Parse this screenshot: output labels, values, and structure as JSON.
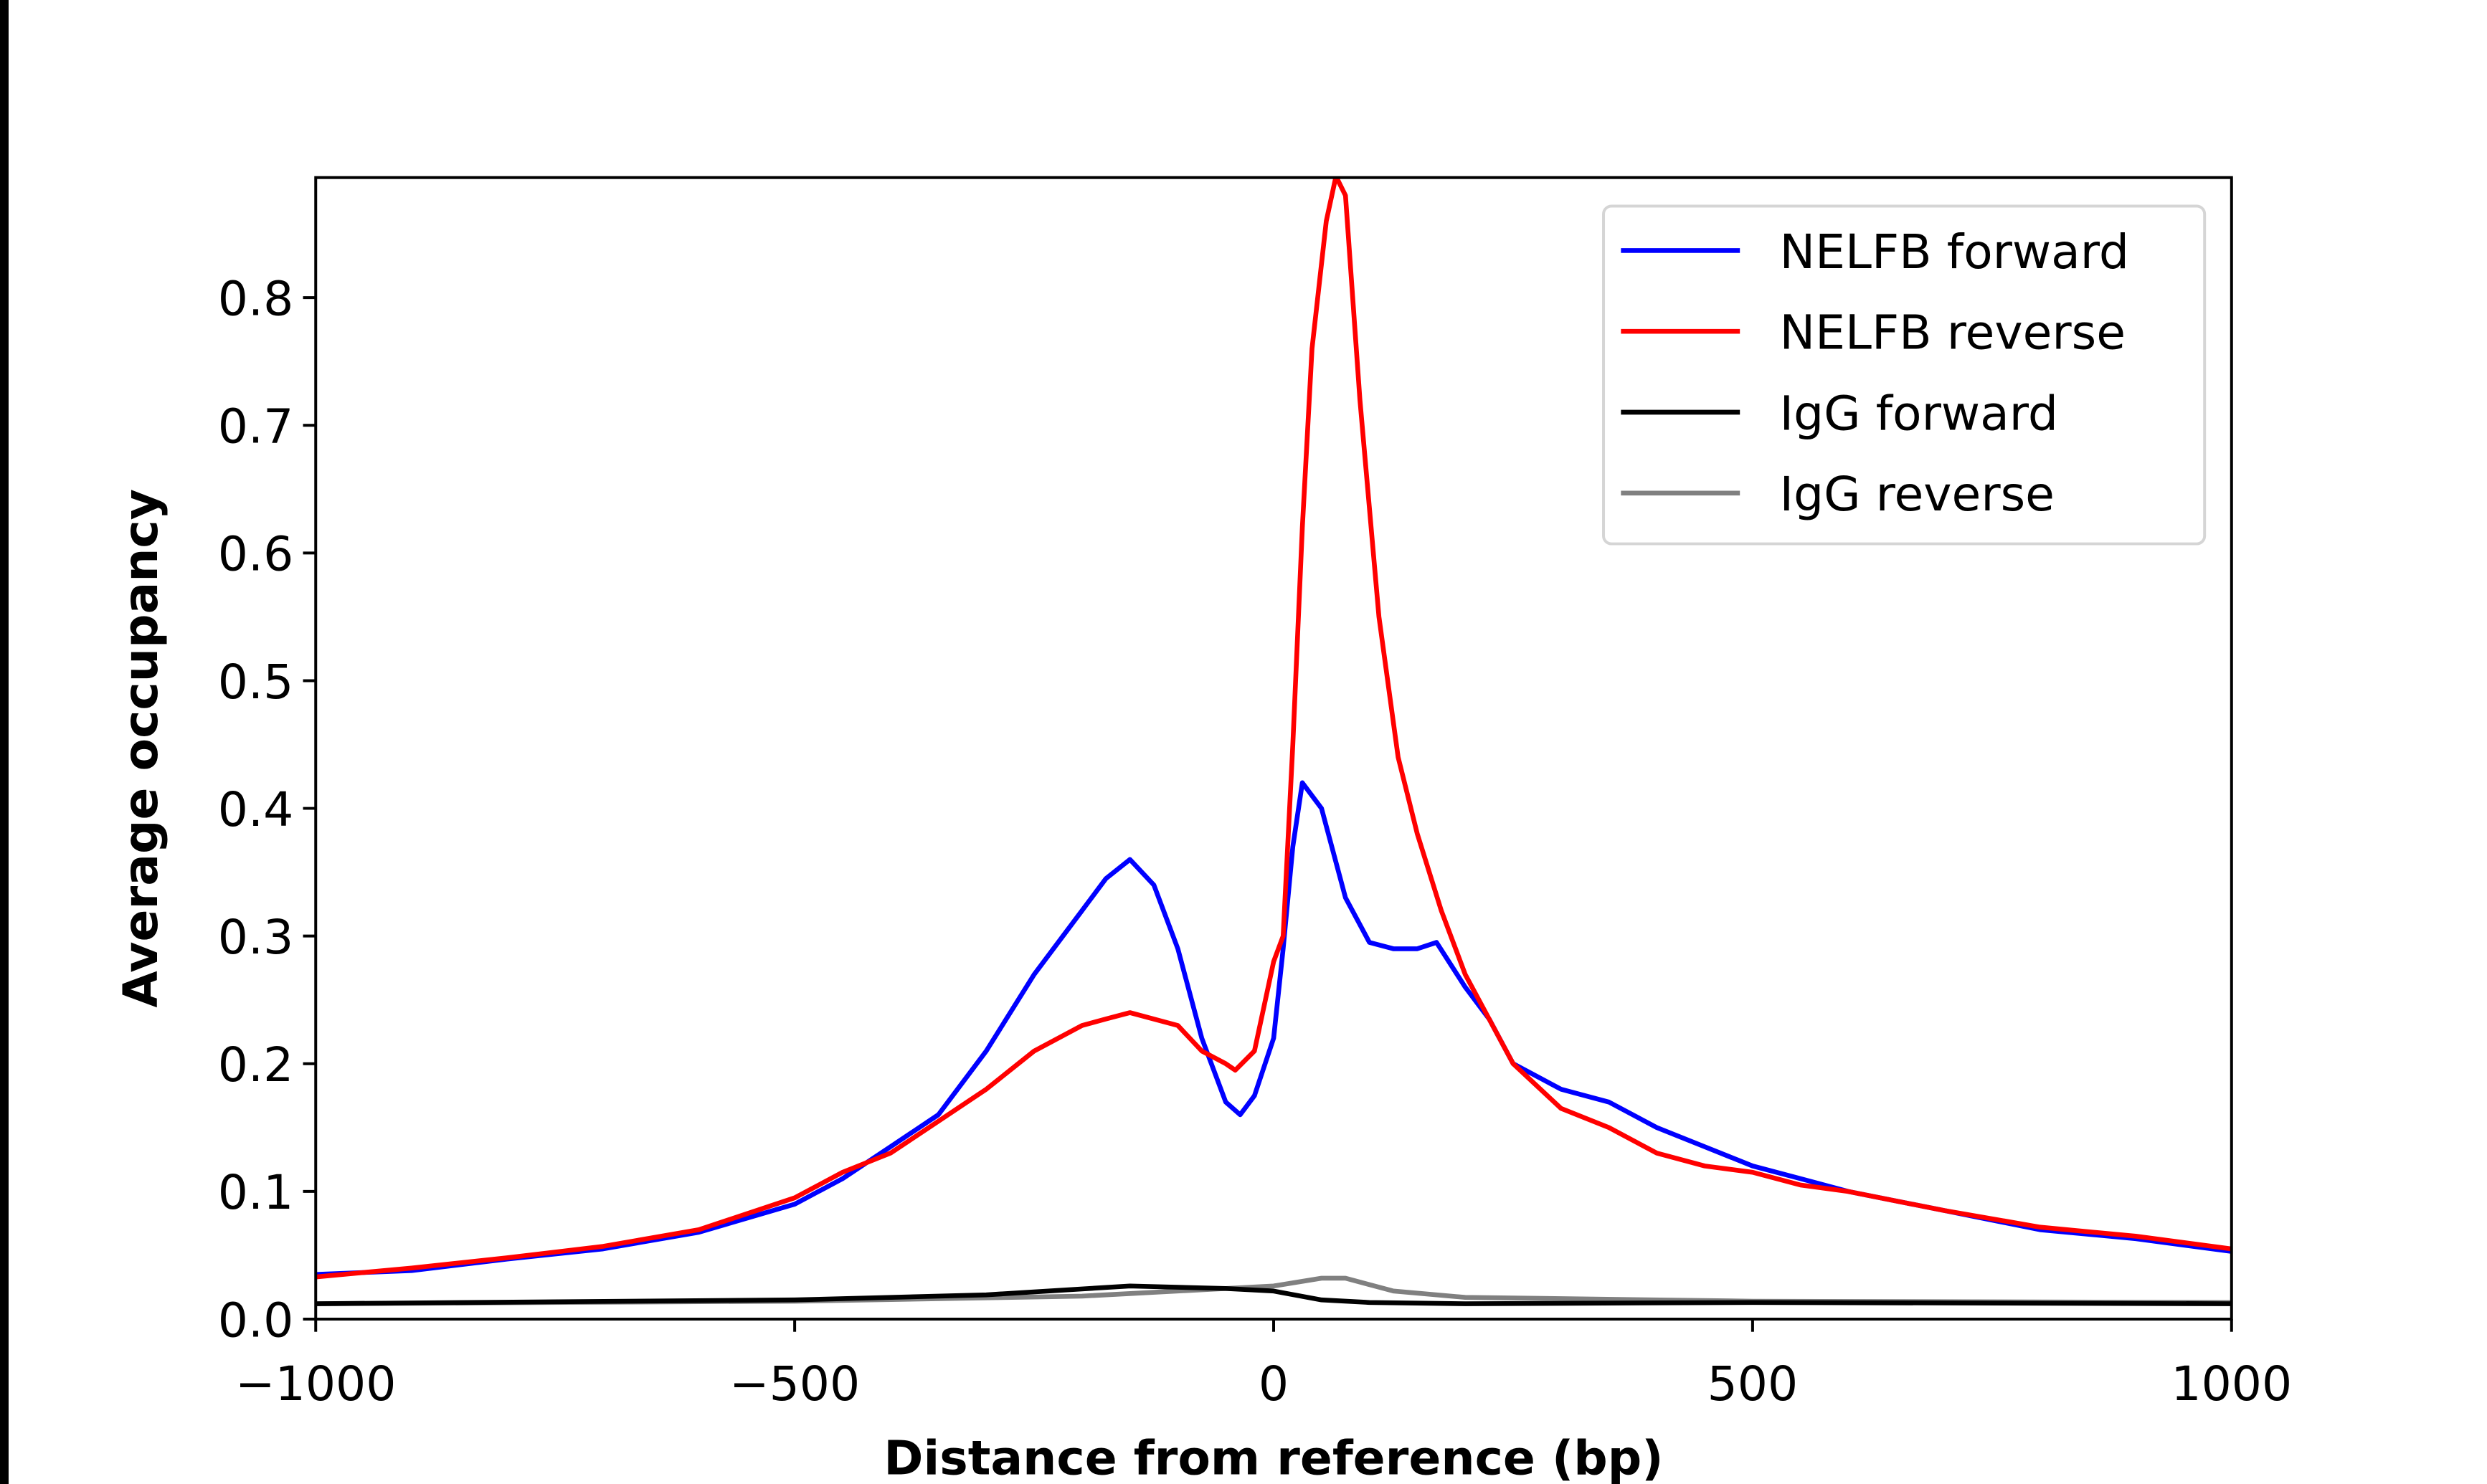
{
  "chart_data": {
    "type": "line",
    "title": "",
    "xlabel": "Distance from reference (bp)",
    "ylabel": "Average occupancy",
    "xlim": [
      -1000,
      1000
    ],
    "ylim": [
      0,
      0.894
    ],
    "xticks": [
      -1000,
      -500,
      0,
      500,
      1000
    ],
    "xtick_labels": [
      "−1000",
      "−500",
      "0",
      "500",
      "1000"
    ],
    "yticks": [
      0,
      0.1,
      0.2,
      0.3,
      0.4,
      0.5,
      0.6,
      0.7,
      0.8
    ],
    "ytick_labels": [
      "0.0",
      "0.1",
      "0.2",
      "0.3",
      "0.4",
      "0.5",
      "0.6",
      "0.7",
      "0.8"
    ],
    "grid": false,
    "legend_placement": "top-right",
    "series": [
      {
        "name": "NELFB forward",
        "color": "#0000ff",
        "x": [
          -1000,
          -900,
          -800,
          -700,
          -600,
          -500,
          -450,
          -400,
          -350,
          -300,
          -250,
          -200,
          -175,
          -150,
          -125,
          -100,
          -75,
          -50,
          -35,
          -20,
          0,
          10,
          20,
          30,
          50,
          75,
          100,
          125,
          150,
          170,
          200,
          225,
          250,
          300,
          350,
          400,
          450,
          500,
          550,
          600,
          700,
          800,
          900,
          1000
        ],
        "y": [
          0.035,
          0.038,
          0.047,
          0.055,
          0.068,
          0.09,
          0.11,
          0.135,
          0.16,
          0.21,
          0.27,
          0.32,
          0.345,
          0.36,
          0.34,
          0.29,
          0.22,
          0.17,
          0.16,
          0.175,
          0.22,
          0.29,
          0.37,
          0.42,
          0.4,
          0.33,
          0.295,
          0.29,
          0.29,
          0.295,
          0.26,
          0.235,
          0.2,
          0.18,
          0.17,
          0.15,
          0.135,
          0.12,
          0.11,
          0.1,
          0.085,
          0.07,
          0.063,
          0.053
        ]
      },
      {
        "name": "NELFB reverse",
        "color": "#ff0000",
        "x": [
          -1000,
          -900,
          -800,
          -700,
          -600,
          -500,
          -450,
          -400,
          -350,
          -300,
          -250,
          -200,
          -175,
          -150,
          -100,
          -75,
          -50,
          -40,
          -20,
          0,
          10,
          20,
          30,
          40,
          55,
          65,
          75,
          90,
          110,
          130,
          150,
          175,
          200,
          250,
          300,
          350,
          400,
          450,
          500,
          550,
          600,
          700,
          800,
          900,
          1000
        ],
        "y": [
          0.033,
          0.04,
          0.048,
          0.057,
          0.07,
          0.095,
          0.115,
          0.13,
          0.155,
          0.18,
          0.21,
          0.23,
          0.235,
          0.24,
          0.23,
          0.21,
          0.2,
          0.195,
          0.21,
          0.28,
          0.3,
          0.45,
          0.62,
          0.76,
          0.86,
          0.895,
          0.88,
          0.72,
          0.55,
          0.44,
          0.38,
          0.32,
          0.27,
          0.2,
          0.165,
          0.15,
          0.13,
          0.12,
          0.115,
          0.105,
          0.1,
          0.085,
          0.072,
          0.065,
          0.055
        ]
      },
      {
        "name": "IgG forward",
        "color": "#000000",
        "x": [
          -1000,
          -500,
          -300,
          -150,
          -50,
          0,
          50,
          100,
          200,
          500,
          1000
        ],
        "y": [
          0.012,
          0.015,
          0.019,
          0.026,
          0.024,
          0.022,
          0.015,
          0.013,
          0.012,
          0.013,
          0.012
        ]
      },
      {
        "name": "IgG reverse",
        "color": "#808080",
        "x": [
          -1000,
          -500,
          -200,
          -50,
          0,
          50,
          75,
          125,
          200,
          500,
          1000
        ],
        "y": [
          0.012,
          0.014,
          0.018,
          0.024,
          0.026,
          0.032,
          0.032,
          0.022,
          0.017,
          0.014,
          0.013
        ]
      }
    ]
  }
}
